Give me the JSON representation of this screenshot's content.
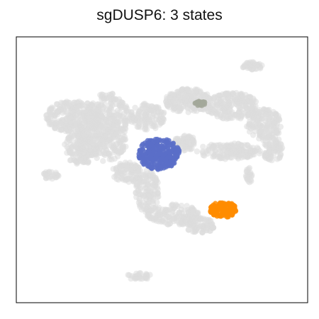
{
  "chart_data": {
    "type": "scatter",
    "title": "sgDUSP6: 3 states",
    "xlabel": "",
    "ylabel": "",
    "ticks": false,
    "grid": false,
    "legend": "none",
    "background_color": "#dcdcdc",
    "series": [
      {
        "color": "#dcdcdc",
        "role": "background",
        "clusters": [
          {
            "cx": 0.2,
            "cy": 0.7,
            "rx": 0.1,
            "ry": 0.06,
            "n": 260
          },
          {
            "cx": 0.31,
            "cy": 0.7,
            "rx": 0.08,
            "ry": 0.09,
            "n": 220
          },
          {
            "cx": 0.29,
            "cy": 0.6,
            "rx": 0.09,
            "ry": 0.07,
            "n": 200
          },
          {
            "cx": 0.22,
            "cy": 0.58,
            "rx": 0.06,
            "ry": 0.06,
            "n": 120
          },
          {
            "cx": 0.45,
            "cy": 0.7,
            "rx": 0.06,
            "ry": 0.05,
            "n": 120
          },
          {
            "cx": 0.38,
            "cy": 0.49,
            "rx": 0.05,
            "ry": 0.04,
            "n": 90
          },
          {
            "cx": 0.45,
            "cy": 0.42,
            "rx": 0.04,
            "ry": 0.08,
            "n": 130
          },
          {
            "cx": 0.54,
            "cy": 0.33,
            "rx": 0.09,
            "ry": 0.04,
            "n": 150
          },
          {
            "cx": 0.63,
            "cy": 0.29,
            "rx": 0.05,
            "ry": 0.03,
            "n": 80
          },
          {
            "cx": 0.59,
            "cy": 0.76,
            "rx": 0.08,
            "ry": 0.045,
            "n": 180
          },
          {
            "cx": 0.74,
            "cy": 0.74,
            "rx": 0.09,
            "ry": 0.05,
            "n": 210
          },
          {
            "cx": 0.85,
            "cy": 0.67,
            "rx": 0.06,
            "ry": 0.06,
            "n": 150
          },
          {
            "cx": 0.88,
            "cy": 0.58,
            "rx": 0.035,
            "ry": 0.05,
            "n": 80
          },
          {
            "cx": 0.73,
            "cy": 0.57,
            "rx": 0.11,
            "ry": 0.03,
            "n": 150
          },
          {
            "cx": 0.58,
            "cy": 0.6,
            "rx": 0.04,
            "ry": 0.03,
            "n": 60
          },
          {
            "cx": 0.81,
            "cy": 0.89,
            "rx": 0.035,
            "ry": 0.015,
            "n": 40
          },
          {
            "cx": 0.12,
            "cy": 0.48,
            "rx": 0.03,
            "ry": 0.015,
            "n": 25
          },
          {
            "cx": 0.8,
            "cy": 0.48,
            "rx": 0.012,
            "ry": 0.03,
            "n": 20
          },
          {
            "cx": 0.42,
            "cy": 0.1,
            "rx": 0.045,
            "ry": 0.013,
            "n": 30
          }
        ]
      },
      {
        "color": "#ff8c00",
        "role": "highlight",
        "clusters": [
          {
            "cx": 0.71,
            "cy": 0.35,
            "rx": 0.045,
            "ry": 0.03,
            "n": 130
          }
        ]
      },
      {
        "color": "#5b6ec8",
        "role": "highlight",
        "clusters": [
          {
            "cx": 0.49,
            "cy": 0.56,
            "rx": 0.07,
            "ry": 0.06,
            "n": 260
          }
        ]
      },
      {
        "color": "#a3a89a",
        "role": "highlight",
        "clusters": [
          {
            "cx": 0.63,
            "cy": 0.75,
            "rx": 0.02,
            "ry": 0.009,
            "n": 25
          }
        ]
      }
    ],
    "xlim": [
      0,
      1
    ],
    "ylim": [
      0,
      1
    ]
  }
}
